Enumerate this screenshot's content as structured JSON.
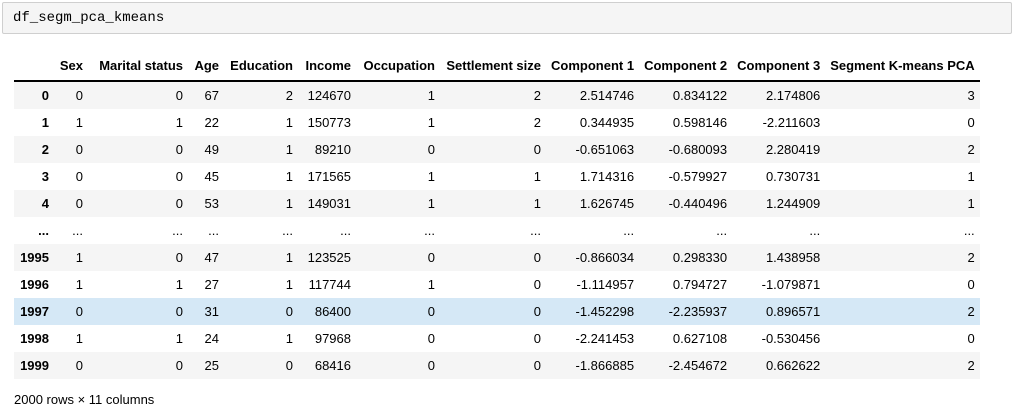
{
  "code_cell": {
    "text": "df_segm_pca_kmeans"
  },
  "table": {
    "corner_label": "",
    "columns": [
      "Sex",
      "Marital status",
      "Age",
      "Education",
      "Income",
      "Occupation",
      "Settlement size",
      "Component 1",
      "Component 2",
      "Component 3",
      "Segment K-means PCA"
    ],
    "rows": [
      {
        "index": "0",
        "cells": [
          "0",
          "0",
          "67",
          "2",
          "124670",
          "1",
          "2",
          "2.514746",
          "0.834122",
          "2.174806",
          "3"
        ],
        "highlighted": false
      },
      {
        "index": "1",
        "cells": [
          "1",
          "1",
          "22",
          "1",
          "150773",
          "1",
          "2",
          "0.344935",
          "0.598146",
          "-2.211603",
          "0"
        ],
        "highlighted": false
      },
      {
        "index": "2",
        "cells": [
          "0",
          "0",
          "49",
          "1",
          "89210",
          "0",
          "0",
          "-0.651063",
          "-0.680093",
          "2.280419",
          "2"
        ],
        "highlighted": false
      },
      {
        "index": "3",
        "cells": [
          "0",
          "0",
          "45",
          "1",
          "171565",
          "1",
          "1",
          "1.714316",
          "-0.579927",
          "0.730731",
          "1"
        ],
        "highlighted": false
      },
      {
        "index": "4",
        "cells": [
          "0",
          "0",
          "53",
          "1",
          "149031",
          "1",
          "1",
          "1.626745",
          "-0.440496",
          "1.244909",
          "1"
        ],
        "highlighted": false
      },
      {
        "index": "...",
        "cells": [
          "...",
          "...",
          "...",
          "...",
          "...",
          "...",
          "...",
          "...",
          "...",
          "...",
          "..."
        ],
        "highlighted": false
      },
      {
        "index": "1995",
        "cells": [
          "1",
          "0",
          "47",
          "1",
          "123525",
          "0",
          "0",
          "-0.866034",
          "0.298330",
          "1.438958",
          "2"
        ],
        "highlighted": false
      },
      {
        "index": "1996",
        "cells": [
          "1",
          "1",
          "27",
          "1",
          "117744",
          "1",
          "0",
          "-1.114957",
          "0.794727",
          "-1.079871",
          "0"
        ],
        "highlighted": false
      },
      {
        "index": "1997",
        "cells": [
          "0",
          "0",
          "31",
          "0",
          "86400",
          "0",
          "0",
          "-1.452298",
          "-2.235937",
          "0.896571",
          "2"
        ],
        "highlighted": true
      },
      {
        "index": "1998",
        "cells": [
          "1",
          "1",
          "24",
          "1",
          "97968",
          "0",
          "0",
          "-2.241453",
          "0.627108",
          "-0.530456",
          "0"
        ],
        "highlighted": false
      },
      {
        "index": "1999",
        "cells": [
          "0",
          "0",
          "25",
          "0",
          "68416",
          "0",
          "0",
          "-1.866885",
          "-2.454672",
          "0.662622",
          "2"
        ],
        "highlighted": false
      }
    ],
    "summary": "2000 rows × 11 columns"
  },
  "colors": {
    "highlight_row": "#d5e8f6",
    "stripe_row": "#f5f5f5",
    "header_border": "#000000",
    "code_cell_bg": "#f5f5f5",
    "code_cell_border": "#cfcfcf"
  }
}
